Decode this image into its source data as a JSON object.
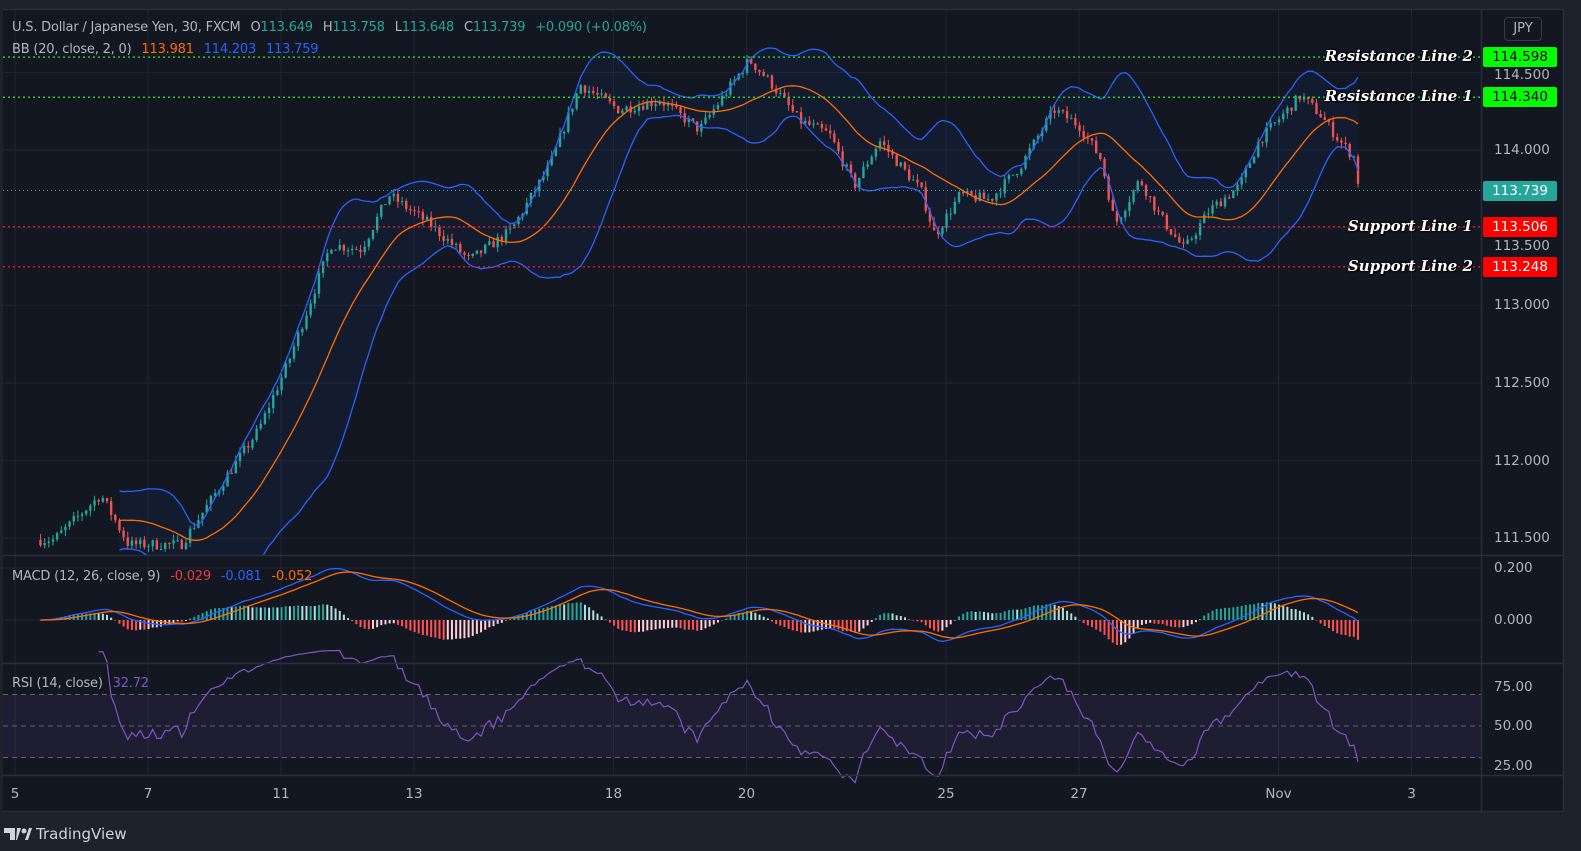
{
  "header": {
    "symbol": "U.S. Dollar / Japanese Yen, 30, FXCM",
    "ohlc": [
      {
        "label": "O",
        "value": "113.649"
      },
      {
        "label": "H",
        "value": "113.758"
      },
      {
        "label": "L",
        "value": "113.648"
      },
      {
        "label": "C",
        "value": "113.739"
      }
    ],
    "change": "+0.090 (+0.08%)"
  },
  "bb": {
    "label": "BB (20, close, 2, 0)",
    "basis": "113.981",
    "upper": "114.203",
    "lower": "113.759"
  },
  "currency_button": "JPY",
  "macd": {
    "label": "MACD (12, 26, close, 9)",
    "histogram": "-0.029",
    "macd": "-0.081",
    "signal": "-0.052"
  },
  "rsi": {
    "label": "RSI (14, close)",
    "value": "32.72"
  },
  "footer": {
    "brand": "TradingView"
  },
  "colors": {
    "background": "#131722",
    "up": "#26a69a",
    "down": "#ef5350",
    "bb_basis": "#ff6d00",
    "bb_bands": "#2962ff",
    "rsi": "#7e57c2",
    "resistance": "#00ff00",
    "support": "#ff0000",
    "current": "#26a69a"
  },
  "chart_data": {
    "type": "candlestick",
    "x_ticks": [
      "5",
      "7",
      "11",
      "13",
      "18",
      "20",
      "25",
      "27",
      "Nov",
      "3"
    ],
    "price_axis": {
      "ticks": [
        "114.500",
        "114.000",
        "113.500",
        "113.000",
        "112.500",
        "112.000",
        "111.500"
      ],
      "range": [
        111.45,
        114.9
      ]
    },
    "macd_axis": {
      "ticks": [
        "0.200",
        "0.000"
      ]
    },
    "rsi_axis": {
      "ticks": [
        "75.00",
        "50.00",
        "25.00"
      ],
      "bands": [
        30,
        50,
        70
      ]
    },
    "current_price": {
      "label": "113.739",
      "value": 113.739
    },
    "levels": [
      {
        "name": "Resistance Line 2",
        "label": "114.598",
        "value": 114.598,
        "kind": "resistance"
      },
      {
        "name": "Resistance Line 1",
        "label": "114.340",
        "value": 114.34,
        "kind": "resistance"
      },
      {
        "name": "Support Line 1",
        "label": "113.506",
        "value": 113.506,
        "kind": "support"
      },
      {
        "name": "Support Line 2",
        "label": "113.248",
        "value": 113.248,
        "kind": "support"
      }
    ],
    "close_path": [
      [
        "Oct 5 14:00",
        111.49
      ],
      [
        "Oct 6 07:00",
        111.78
      ],
      [
        "Oct 6 17:00",
        111.46
      ],
      [
        "Oct 7 12:00",
        111.46
      ],
      [
        "Oct 8 06:00",
        111.94
      ],
      [
        "Oct 8 16:00",
        112.2
      ],
      [
        "Oct 11 03:00",
        112.65
      ],
      [
        "Oct 11 18:00",
        113.39
      ],
      [
        "Oct 12 05:00",
        113.36
      ],
      [
        "Oct 12 15:00",
        113.71
      ],
      [
        "Oct 13 06:00",
        113.52
      ],
      [
        "Oct 13 20:00",
        113.29
      ],
      [
        "Oct 14 11:00",
        113.48
      ],
      [
        "Oct 15 01:00",
        113.9
      ],
      [
        "Oct 15 12:00",
        114.42
      ],
      [
        "Oct 18 02:00",
        114.26
      ],
      [
        "Oct 18 17:00",
        114.32
      ],
      [
        "Oct 19 07:00",
        114.13
      ],
      [
        "Oct 20 01:00",
        114.58
      ],
      [
        "Oct 20 08:00",
        114.45
      ],
      [
        "Oct 20 19:00",
        114.19
      ],
      [
        "Oct 21 06:00",
        114.1
      ],
      [
        "Oct 21 15:00",
        113.77
      ],
      [
        "Oct 22 00:00",
        114.06
      ],
      [
        "Oct 22 15:00",
        113.74
      ],
      [
        "Oct 22 20:00",
        113.45
      ],
      [
        "Oct 25 05:00",
        113.71
      ],
      [
        "Oct 25 16:00",
        113.68
      ],
      [
        "Oct 26 03:00",
        113.9
      ],
      [
        "Oct 26 15:00",
        114.26
      ],
      [
        "Oct 27 00:00",
        114.16
      ],
      [
        "Oct 27 08:00",
        113.94
      ],
      [
        "Oct 27 13:00",
        113.52
      ],
      [
        "Oct 27 22:00",
        113.81
      ],
      [
        "Oct 28 05:00",
        113.58
      ],
      [
        "Oct 28 14:00",
        113.36
      ],
      [
        "Oct 28 23:00",
        113.61
      ],
      [
        "Oct 29 10:00",
        113.77
      ],
      [
        "Oct 29 17:00",
        114.06
      ],
      [
        "Nov 1 08:00",
        114.35
      ],
      [
        "Nov 1 15:00",
        114.23
      ],
      [
        "Nov 1 22:00",
        114.06
      ],
      [
        "Nov 2 04:00",
        113.94
      ],
      [
        "Nov 2 05:00",
        113.74
      ]
    ]
  }
}
